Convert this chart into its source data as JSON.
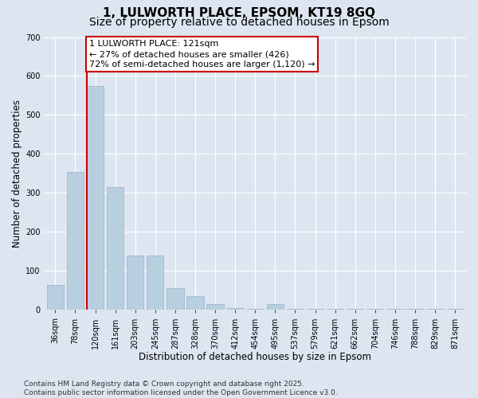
{
  "title1": "1, LULWORTH PLACE, EPSOM, KT19 8GQ",
  "title2": "Size of property relative to detached houses in Epsom",
  "xlabel": "Distribution of detached houses by size in Epsom",
  "ylabel": "Number of detached properties",
  "categories": [
    "36sqm",
    "78sqm",
    "120sqm",
    "161sqm",
    "203sqm",
    "245sqm",
    "287sqm",
    "328sqm",
    "370sqm",
    "412sqm",
    "454sqm",
    "495sqm",
    "537sqm",
    "579sqm",
    "621sqm",
    "662sqm",
    "704sqm",
    "746sqm",
    "788sqm",
    "829sqm",
    "871sqm"
  ],
  "values": [
    65,
    355,
    575,
    315,
    140,
    140,
    55,
    35,
    15,
    5,
    2,
    15,
    2,
    2,
    2,
    2,
    2,
    2,
    2,
    2,
    2
  ],
  "bar_color": "#b8cfe0",
  "bar_edge_color": "#9ab0c8",
  "highlight_bar_index": 2,
  "highlight_color": "#cc0000",
  "annotation_box_color": "#cc0000",
  "annotation_line1": "1 LULWORTH PLACE: 121sqm",
  "annotation_line2": "← 27% of detached houses are smaller (426)",
  "annotation_line3": "72% of semi-detached houses are larger (1,120) →",
  "ylim_max": 700,
  "yticks": [
    0,
    100,
    200,
    300,
    400,
    500,
    600,
    700
  ],
  "background_color": "#dde6f0",
  "plot_bg_color": "#dde6f0",
  "grid_color": "#ffffff",
  "footer_line1": "Contains HM Land Registry data © Crown copyright and database right 2025.",
  "footer_line2": "Contains public sector information licensed under the Open Government Licence v3.0.",
  "title1_fontsize": 11,
  "title2_fontsize": 10,
  "xlabel_fontsize": 8.5,
  "ylabel_fontsize": 8.5,
  "tick_fontsize": 7,
  "annotation_fontsize": 8,
  "footer_fontsize": 6.5
}
